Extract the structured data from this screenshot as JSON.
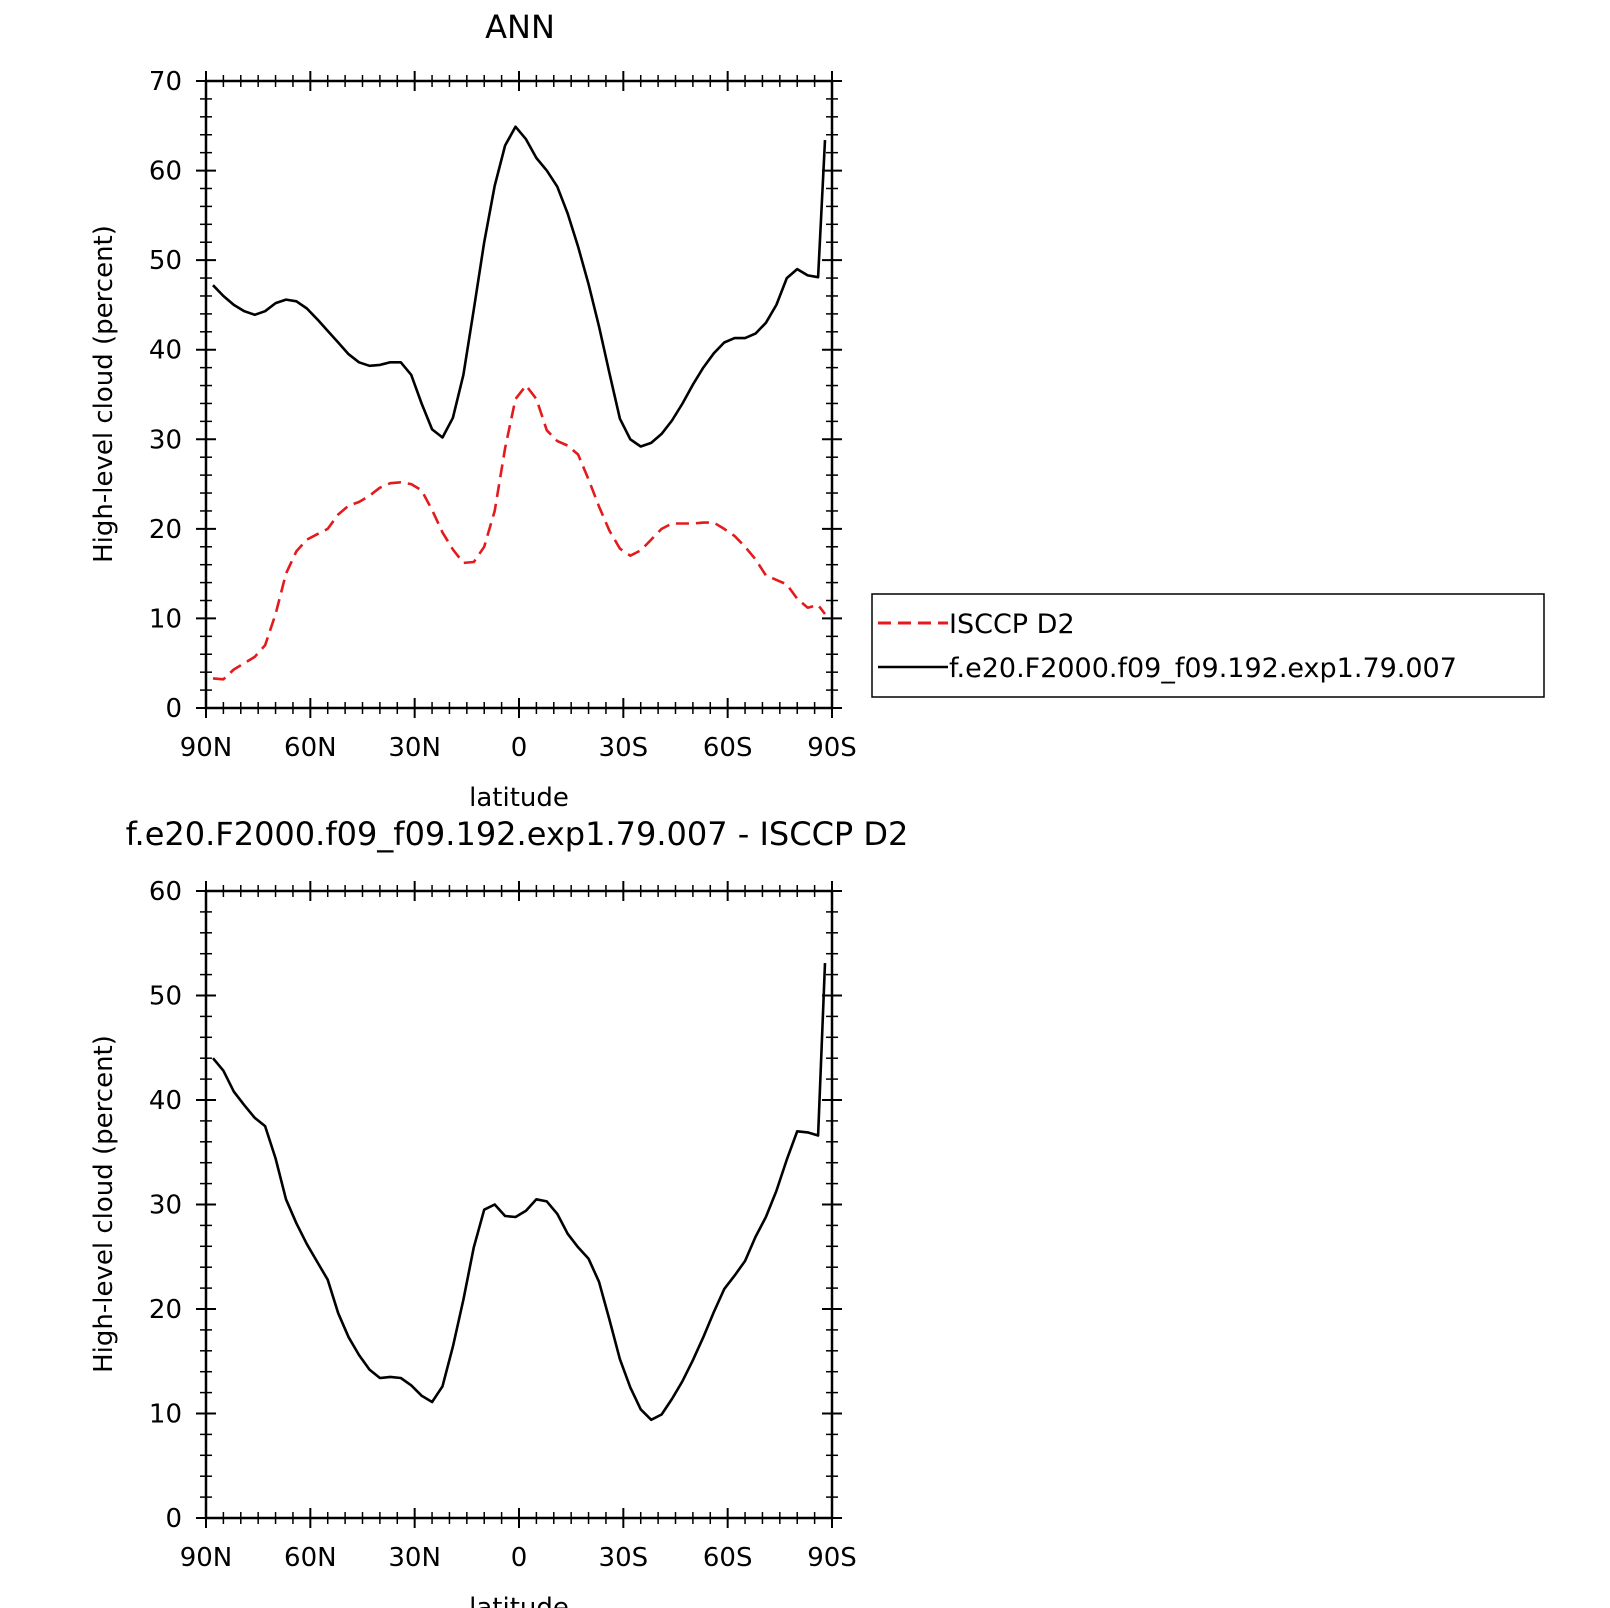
{
  "figure": {
    "shared_xticks": [
      "90N",
      "60N",
      "30N",
      "0",
      "30S",
      "60S",
      "90S"
    ]
  },
  "chart_data": [
    {
      "type": "line",
      "title": "ANN",
      "xlabel": "latitude",
      "ylabel": "High-level cloud (percent)",
      "xlim": [
        90,
        -90
      ],
      "ylim": [
        0,
        70
      ],
      "yticks": [
        0,
        10,
        20,
        30,
        40,
        50,
        60,
        70
      ],
      "xtick_values": [
        90,
        60,
        30,
        0,
        -30,
        -60,
        -90
      ],
      "xtick_labels": [
        "90N",
        "60N",
        "30N",
        "0",
        "30S",
        "60S",
        "90S"
      ],
      "grid": false,
      "legend_placement": "right",
      "x": [
        88,
        85,
        82,
        79,
        76,
        73,
        70,
        67,
        64,
        61,
        58,
        55,
        52,
        49,
        46,
        43,
        40,
        37,
        34,
        31,
        28,
        25,
        22,
        19,
        16,
        13,
        10,
        7,
        4,
        1,
        -2,
        -5,
        -8,
        -11,
        -14,
        -17,
        -20,
        -23,
        -26,
        -29,
        -32,
        -35,
        -38,
        -41,
        -44,
        -47,
        -50,
        -53,
        -56,
        -59,
        -62,
        -65,
        -68,
        -71,
        -74,
        -77,
        -80,
        -83,
        -86,
        -88
      ],
      "series": [
        {
          "name": "ISCCP D2",
          "color": "#e41a1c",
          "dash": "dashed",
          "values": [
            3.3,
            3.2,
            4.3,
            5.0,
            5.7,
            7.0,
            10.5,
            15.0,
            17.5,
            18.8,
            19.4,
            20.0,
            21.6,
            22.6,
            23.0,
            23.7,
            24.6,
            25.1,
            25.2,
            25.0,
            24.3,
            22.1,
            19.6,
            17.7,
            16.2,
            16.3,
            18.0,
            22.0,
            29.0,
            34.5,
            36.0,
            34.5,
            31.0,
            29.8,
            29.3,
            28.3,
            25.5,
            22.5,
            19.8,
            17.8,
            17.0,
            17.6,
            18.8,
            20.0,
            20.6,
            20.6,
            20.6,
            20.7,
            20.7,
            20.0,
            19.2,
            18.0,
            16.6,
            14.8,
            14.3,
            13.8,
            12.2,
            11.2,
            11.5,
            10.5
          ]
        },
        {
          "name": "f.e20.F2000.f09_f09.192.exp1.79.007",
          "color": "#000000",
          "dash": "solid",
          "values": [
            47.2,
            46.0,
            45.0,
            44.3,
            43.9,
            44.3,
            45.2,
            45.6,
            45.4,
            44.6,
            43.4,
            42.1,
            40.8,
            39.5,
            38.6,
            38.2,
            38.3,
            38.6,
            38.6,
            37.2,
            34.0,
            31.1,
            30.2,
            32.4,
            37.2,
            44.5,
            52.0,
            58.3,
            62.8,
            64.9,
            63.5,
            61.4,
            60.0,
            58.2,
            55.2,
            51.5,
            47.3,
            42.6,
            37.4,
            32.3,
            30.0,
            29.2,
            29.6,
            30.6,
            32.1,
            34.0,
            36.1,
            38.0,
            39.6,
            40.8,
            41.3,
            41.3,
            41.8,
            43.0,
            45.0,
            48.0,
            49.0,
            48.3,
            48.1,
            63.4
          ]
        }
      ]
    },
    {
      "type": "line",
      "title": "f.e20.F2000.f09_f09.192.exp1.79.007 - ISCCP D2",
      "xlabel": "latitude",
      "ylabel": "High-level cloud (percent)",
      "xlim": [
        90,
        -90
      ],
      "ylim": [
        0,
        60
      ],
      "yticks": [
        0,
        10,
        20,
        30,
        40,
        50,
        60
      ],
      "xtick_values": [
        90,
        60,
        30,
        0,
        -30,
        -60,
        -90
      ],
      "xtick_labels": [
        "90N",
        "60N",
        "30N",
        "0",
        "30S",
        "60S",
        "90S"
      ],
      "grid": false,
      "x": [
        88,
        85,
        82,
        79,
        76,
        73,
        70,
        67,
        64,
        61,
        58,
        55,
        52,
        49,
        46,
        43,
        40,
        37,
        34,
        31,
        28,
        25,
        22,
        19,
        16,
        13,
        10,
        7,
        4,
        1,
        -2,
        -5,
        -8,
        -11,
        -14,
        -17,
        -20,
        -23,
        -26,
        -29,
        -32,
        -35,
        -38,
        -41,
        -44,
        -47,
        -50,
        -53,
        -56,
        -59,
        -62,
        -65,
        -68,
        -71,
        -74,
        -77,
        -80,
        -83,
        -86,
        -88
      ],
      "series": [
        {
          "color": "#000000",
          "dash": "solid",
          "values": [
            44.0,
            42.8,
            40.8,
            39.5,
            38.3,
            37.5,
            34.4,
            30.5,
            28.2,
            26.2,
            24.5,
            22.8,
            19.6,
            17.3,
            15.6,
            14.2,
            13.4,
            13.5,
            13.4,
            12.7,
            11.7,
            11.1,
            12.6,
            16.4,
            20.9,
            25.9,
            29.5,
            30.0,
            28.9,
            28.8,
            29.4,
            30.5,
            30.3,
            29.1,
            27.2,
            25.9,
            24.8,
            22.6,
            19.0,
            15.2,
            12.5,
            10.4,
            9.4,
            9.9,
            11.4,
            13.1,
            15.1,
            17.3,
            19.7,
            21.9,
            23.2,
            24.6,
            26.9,
            28.8,
            31.3,
            34.3,
            37.0,
            36.9,
            36.6,
            53.1
          ]
        }
      ]
    }
  ]
}
